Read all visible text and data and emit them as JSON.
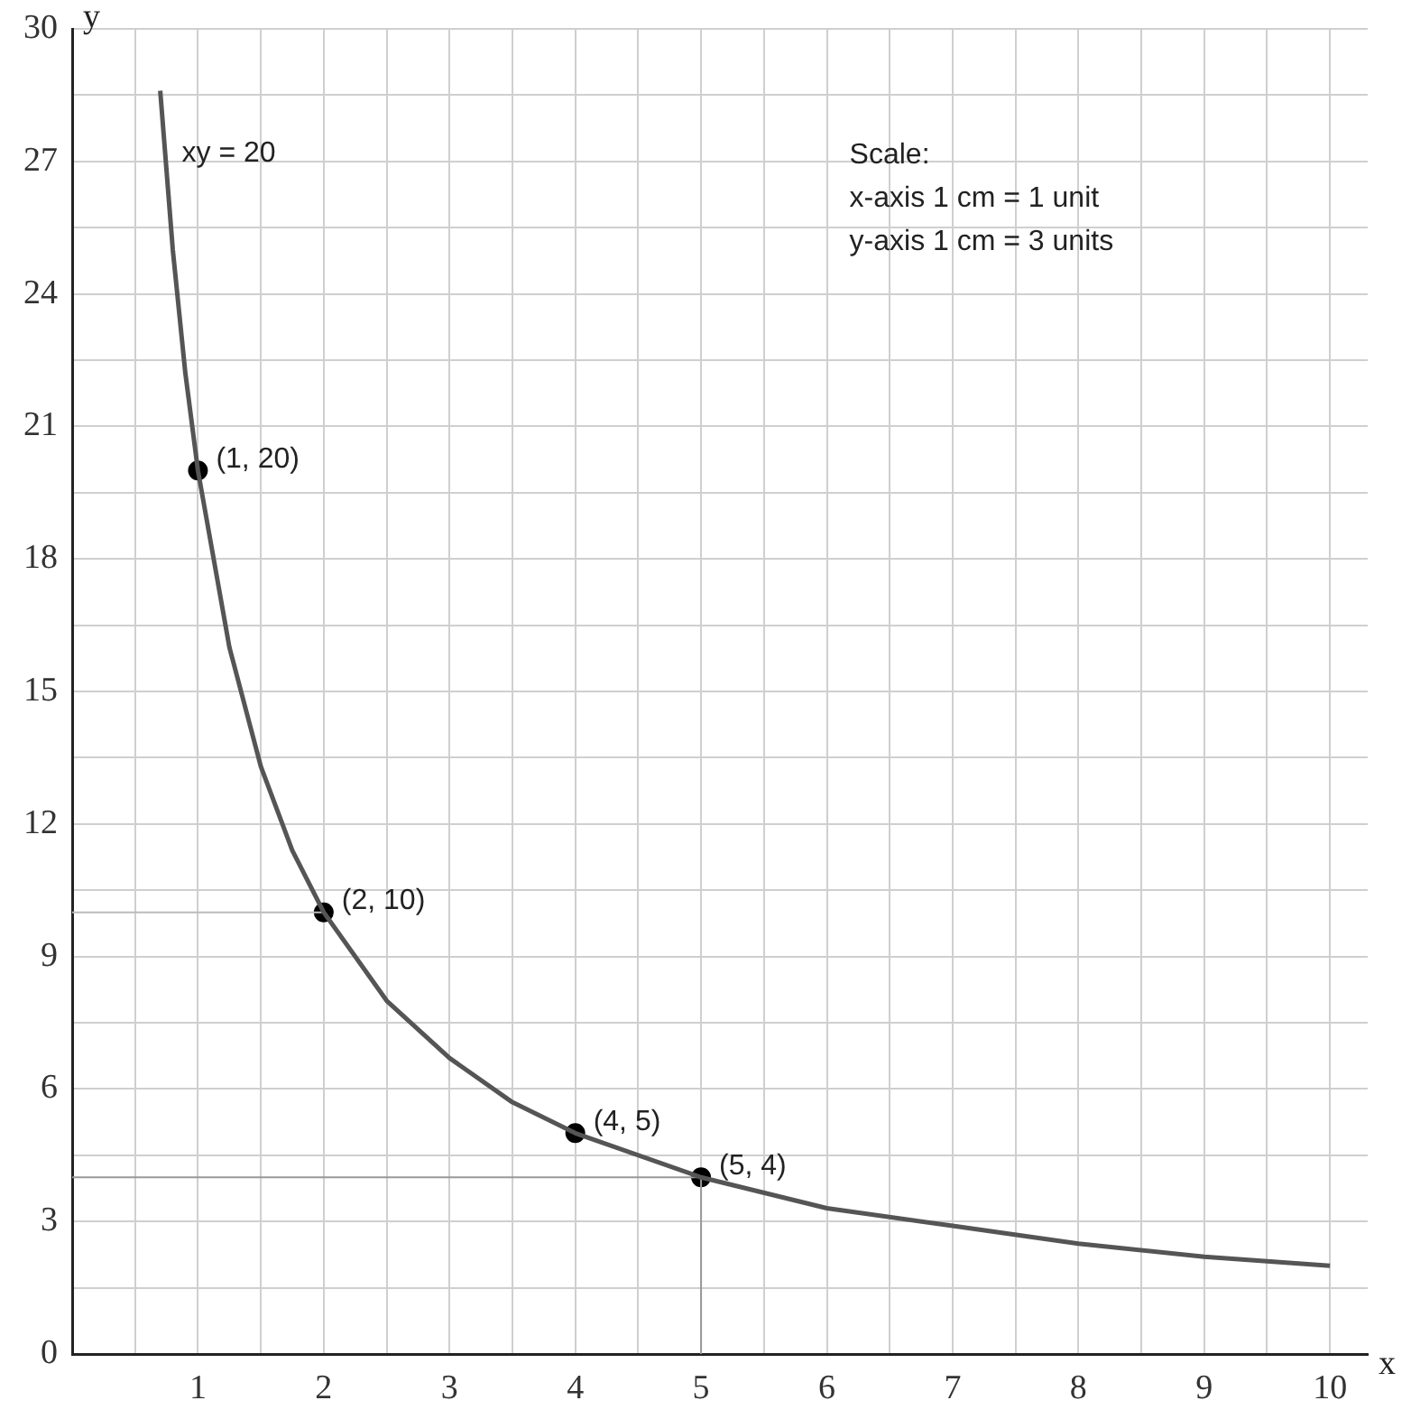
{
  "chart_data": {
    "type": "line",
    "xlabel": "x",
    "ylabel": "y",
    "xlim": [
      0,
      10.3
    ],
    "ylim": [
      0,
      30
    ],
    "xticks": [
      {
        "value": 0,
        "label": null
      },
      {
        "value": 0.5,
        "label": null
      },
      1,
      {
        "value": 1.5,
        "label": null
      },
      2,
      {
        "value": 2.5,
        "label": null
      },
      3,
      {
        "value": 3.5,
        "label": null
      },
      4,
      {
        "value": 4.5,
        "label": null
      },
      5,
      {
        "value": 5.5,
        "label": null
      },
      6,
      {
        "value": 6.5,
        "label": null
      },
      7,
      {
        "value": 7.5,
        "label": null
      },
      8,
      {
        "value": 8.5,
        "label": null
      },
      9,
      {
        "value": 9.5,
        "label": null
      },
      10
    ],
    "yticks": [
      0,
      {
        "value": 1.5,
        "label": null
      },
      3,
      {
        "value": 4.5,
        "label": null
      },
      6,
      {
        "value": 7.5,
        "label": null
      },
      9,
      {
        "value": 10.5,
        "label": null
      },
      12,
      {
        "value": 13.5,
        "label": null
      },
      15,
      {
        "value": 16.5,
        "label": null
      },
      18,
      {
        "value": 19.5,
        "label": null
      },
      21,
      {
        "value": 22.5,
        "label": null
      },
      24,
      {
        "value": 25.5,
        "label": null
      },
      27,
      {
        "value": 28.5,
        "label": null
      },
      30
    ],
    "grid": true,
    "legend": false,
    "series": [
      {
        "type": "line",
        "name": "xy = 20",
        "color": "#555555",
        "x": [
          0.7,
          0.8,
          0.9,
          1,
          1.25,
          1.5,
          1.75,
          2,
          2.5,
          3,
          3.5,
          4,
          5,
          6,
          7,
          8,
          9,
          10
        ],
        "values": [
          28.6,
          25,
          22.2,
          20,
          16,
          13.3,
          11.4,
          10,
          8,
          6.7,
          5.7,
          5,
          4,
          3.3,
          2.9,
          2.5,
          2.2,
          2
        ]
      },
      {
        "type": "line",
        "color": "#999999",
        "x": [
          0,
          5,
          5
        ],
        "values": [
          4,
          4,
          0
        ]
      },
      {
        "type": "line",
        "color": "#bbbbbb",
        "x": [
          0,
          2
        ],
        "values": [
          10,
          10
        ]
      },
      {
        "type": "scatter",
        "color": "#000000",
        "marker": "circle",
        "x": [
          1,
          2,
          4,
          5
        ],
        "values": [
          20,
          10,
          5,
          4
        ],
        "value_labels": [
          "(1, 20)",
          "(2, 10)",
          "(4, 5)",
          "(5, 4)"
        ]
      }
    ],
    "annotations": [
      "Scale:",
      "x-axis 1 cm = 1 unit",
      "y-axis 1 cm = 3 units"
    ]
  }
}
